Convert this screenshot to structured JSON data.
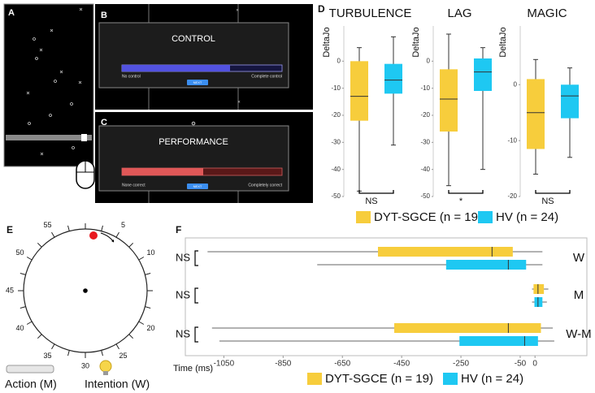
{
  "panel_labels": [
    "A",
    "B",
    "C",
    "D",
    "E",
    "F"
  ],
  "control_screen": {
    "title": "CONTROL",
    "left": "No control",
    "right": "Complete control",
    "button": "NEXT"
  },
  "performance_screen": {
    "title": "PERFORMANCE",
    "left": "None correct",
    "right": "Completely correct",
    "button": "NEXT"
  },
  "clock": {
    "labels": [
      5,
      10,
      20,
      25,
      30,
      35,
      40,
      45,
      50,
      55
    ],
    "action_label": "Action (M)",
    "intention_label": "Intention (W)"
  },
  "chart_data": [
    {
      "type": "box",
      "categories": [
        "TURBULENCE",
        "LAG",
        "MAGIC"
      ],
      "ylabel": "DeltaJo",
      "ylims": [
        [
          -50,
          13
        ],
        [
          -50,
          13
        ],
        [
          -20,
          10.5
        ]
      ],
      "yticks": [
        [
          0,
          -10,
          -20,
          -30,
          -40,
          -50
        ],
        [
          0,
          -10,
          -20,
          -30,
          -40,
          -50
        ],
        [
          0,
          -10,
          -20
        ]
      ],
      "annotations": [
        "NS",
        "*",
        "NS"
      ],
      "series": [
        {
          "name": "DYT-SGCE (n = 19)",
          "color": "#f7cd3c",
          "values": [
            [
              -48,
              -22,
              -13,
              0,
              5
            ],
            [
              -46,
              -26,
              -14,
              -3,
              10
            ],
            [
              -16,
              -11.5,
              -5,
              1,
              4.5
            ]
          ]
        },
        {
          "name": "HV (n = 24)",
          "color": "#1ec8f2",
          "values": [
            [
              -31,
              -12,
              -7,
              -1,
              9
            ],
            [
              -40,
              -11,
              -4,
              1,
              5
            ],
            [
              -13,
              -6,
              -2,
              0,
              3
            ]
          ]
        }
      ]
    },
    {
      "type": "hbox",
      "categories": [
        "W",
        "M",
        "W-M"
      ],
      "annotations": [
        "NS",
        "NS",
        "NS"
      ],
      "xlabel": "Time (ms)",
      "xlim": [
        -1180,
        175
      ],
      "xticks": [
        -1050,
        -850,
        -650,
        -450,
        -250,
        -50,
        0
      ],
      "series": [
        {
          "name": "DYT-SGCE (n = 19)",
          "color": "#f7cd3c",
          "values": [
            [
              -1105,
              -530,
              -145,
              -75,
              25
            ],
            [
              -10,
              -5,
              10,
              30,
              45
            ],
            [
              -1090,
              -475,
              -90,
              20,
              60
            ]
          ]
        },
        {
          "name": "HV (n = 24)",
          "color": "#1ec8f2",
          "values": [
            [
              -735,
              -300,
              -90,
              -30,
              25
            ],
            [
              -10,
              -2,
              10,
              25,
              40
            ],
            [
              -1065,
              -255,
              -35,
              10,
              65
            ]
          ]
        }
      ]
    }
  ]
}
